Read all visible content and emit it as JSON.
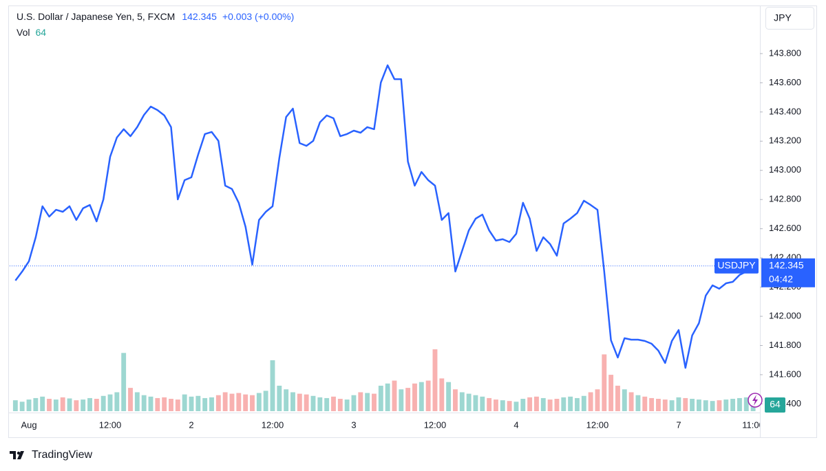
{
  "chart_data": {
    "type": "line",
    "title": "U.S. Dollar / Japanese Yen, 5, FXCM",
    "change": "+0.003 (+0.00%)",
    "currency": "JPY",
    "countdown": "04:42",
    "watermark": "TradingView",
    "grid": false,
    "x": [
      -2,
      -1,
      0,
      1,
      2,
      3,
      4,
      5,
      6,
      7,
      8,
      9,
      10,
      11,
      12,
      13,
      14,
      15,
      16,
      17,
      18,
      19,
      20,
      21,
      22,
      23,
      24,
      25,
      26,
      27,
      28,
      29,
      30,
      31,
      32,
      33,
      34,
      35,
      36,
      37,
      38,
      39,
      40,
      41,
      42,
      43,
      44,
      45,
      46,
      47,
      48,
      49,
      50,
      51,
      52,
      53,
      54,
      55,
      56,
      57,
      58,
      59,
      60,
      61,
      62,
      63,
      64,
      65,
      66,
      67,
      68,
      69,
      70,
      71,
      72,
      73,
      74,
      75,
      76,
      77,
      78,
      79,
      80,
      81,
      82,
      83,
      84,
      85,
      86,
      87,
      88,
      89,
      90,
      91,
      92,
      93,
      94,
      95,
      96,
      97,
      98,
      99,
      100,
      101,
      102,
      103,
      104,
      105,
      106,
      107
    ],
    "xlim": [
      -2.85,
      107.6
    ],
    "xticks": [
      {
        "value": 0,
        "label": "Aug"
      },
      {
        "value": 12,
        "label": "12:00"
      },
      {
        "value": 24,
        "label": "2"
      },
      {
        "value": 36,
        "label": "12:00"
      },
      {
        "value": 48,
        "label": "3"
      },
      {
        "value": 60,
        "label": "12:00"
      },
      {
        "value": 72,
        "label": "4"
      },
      {
        "value": 84,
        "label": "12:00"
      },
      {
        "value": 96,
        "label": "7"
      },
      {
        "value": 107,
        "label": "11:00"
      }
    ],
    "ylim": [
      141.35,
      144.12
    ],
    "yticks": [
      {
        "value": 141.4,
        "label": "141.400"
      },
      {
        "value": 141.6,
        "label": "141.600"
      },
      {
        "value": 141.8,
        "label": "141.800"
      },
      {
        "value": 142.0,
        "label": "142.000"
      },
      {
        "value": 142.2,
        "label": "142.200"
      },
      {
        "value": 142.4,
        "label": "142.400"
      },
      {
        "value": 142.6,
        "label": "142.600"
      },
      {
        "value": 142.8,
        "label": "142.800"
      },
      {
        "value": 143.0,
        "label": "143.000"
      },
      {
        "value": 143.2,
        "label": "143.200"
      },
      {
        "value": 143.4,
        "label": "143.400"
      },
      {
        "value": 143.6,
        "label": "143.600"
      },
      {
        "value": 143.8,
        "label": "143.800"
      }
    ],
    "series": [
      {
        "name": "USDJPY",
        "color": "#2962ff",
        "values": [
          142.245,
          142.307,
          142.377,
          142.542,
          142.754,
          142.683,
          142.73,
          142.716,
          142.754,
          142.66,
          142.74,
          142.763,
          142.65,
          142.801,
          143.093,
          143.225,
          143.282,
          143.234,
          143.296,
          143.38,
          143.437,
          143.413,
          143.376,
          143.296,
          142.801,
          142.933,
          142.952,
          143.107,
          143.249,
          143.263,
          143.202,
          142.895,
          142.872,
          142.778,
          142.613,
          142.354,
          142.66,
          142.716,
          142.754,
          143.084,
          143.366,
          143.423,
          143.187,
          143.168,
          143.202,
          143.329,
          143.376,
          143.357,
          143.234,
          143.249,
          143.272,
          143.258,
          143.296,
          143.282,
          143.602,
          143.72,
          143.625,
          143.625,
          143.06,
          142.895,
          142.989,
          142.933,
          142.895,
          142.66,
          142.707,
          142.307,
          142.448,
          142.589,
          142.669,
          142.697,
          142.589,
          142.519,
          142.528,
          142.509,
          142.566,
          142.778,
          142.669,
          142.448,
          142.542,
          142.495,
          142.415,
          142.636,
          142.669,
          142.707,
          142.792,
          142.763,
          142.73,
          142.307,
          141.836,
          141.718,
          141.85,
          141.84,
          141.84,
          141.831,
          141.812,
          141.765,
          141.68,
          141.831,
          141.906,
          141.647,
          141.869,
          141.953,
          142.142,
          142.212,
          142.189,
          142.226,
          142.236,
          142.283,
          142.307,
          142.345
        ]
      }
    ],
    "volume": {
      "name": "Vol",
      "up_color": "#26a69a",
      "down_color": "#ef5350",
      "values": [
        150,
        130,
        160,
        180,
        200,
        170,
        160,
        190,
        175,
        150,
        160,
        180,
        170,
        210,
        230,
        260,
        800,
        320,
        260,
        220,
        200,
        180,
        190,
        170,
        160,
        230,
        200,
        210,
        180,
        190,
        220,
        260,
        240,
        250,
        230,
        220,
        250,
        280,
        700,
        350,
        300,
        260,
        240,
        230,
        210,
        190,
        180,
        200,
        170,
        160,
        220,
        260,
        250,
        240,
        350,
        380,
        420,
        300,
        320,
        380,
        400,
        420,
        850,
        450,
        400,
        300,
        260,
        240,
        220,
        200,
        180,
        160,
        150,
        140,
        130,
        170,
        190,
        200,
        180,
        160,
        170,
        190,
        200,
        180,
        210,
        260,
        300,
        780,
        500,
        350,
        300,
        260,
        220,
        200,
        180,
        170,
        160,
        150,
        190,
        180,
        170,
        160,
        150,
        140,
        150,
        160,
        170,
        180,
        190,
        64
      ]
    }
  }
}
